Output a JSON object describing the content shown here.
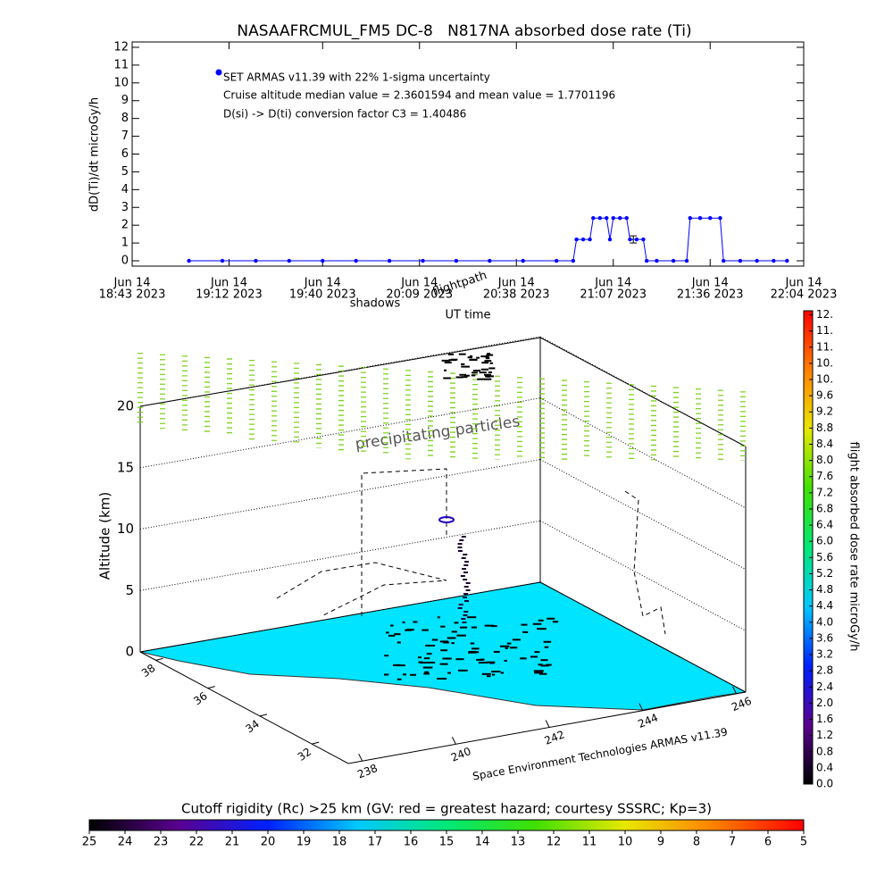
{
  "chart_data": [
    {
      "type": "line",
      "title": "NASAAFRCMUL_FM5 DC-8   N817NA absorbed dose rate (Ti)",
      "ylabel": "dD(Ti)/dt microGy/h",
      "xlabel": "UT time",
      "annotations": [
        "Cruise altitude median value = 2.3601594 and mean value = 1.7701196",
        "D(si) -> D(ti) conversion factor C3 = 1.40486"
      ],
      "labels": [
        "shadows",
        "flightpath"
      ],
      "x": [
        "2023-06-14T19:00",
        "2023-06-14T19:10",
        "2023-06-14T19:20",
        "2023-06-14T19:30",
        "2023-06-14T19:40",
        "2023-06-14T19:50",
        "2023-06-14T20:00",
        "2023-06-14T20:10",
        "2023-06-14T20:20",
        "2023-06-14T20:30",
        "2023-06-14T20:40",
        "2023-06-14T20:50",
        "2023-06-14T20:55",
        "2023-06-14T20:56",
        "2023-06-14T20:58",
        "2023-06-14T21:00",
        "2023-06-14T21:01",
        "2023-06-14T21:03",
        "2023-06-14T21:05",
        "2023-06-14T21:06",
        "2023-06-14T21:07",
        "2023-06-14T21:09",
        "2023-06-14T21:11",
        "2023-06-14T21:12",
        "2023-06-14T21:14",
        "2023-06-14T21:16",
        "2023-06-14T21:17",
        "2023-06-14T21:20",
        "2023-06-14T21:25",
        "2023-06-14T21:29",
        "2023-06-14T21:30",
        "2023-06-14T21:33",
        "2023-06-14T21:36",
        "2023-06-14T21:39",
        "2023-06-14T21:40",
        "2023-06-14T21:45",
        "2023-06-14T21:50",
        "2023-06-14T21:55",
        "2023-06-14T21:59"
      ],
      "series": [
        {
          "name": "SET ARMAS v11.39 with 22% 1-sigma uncertainty",
          "color": "#0000ff",
          "values": [
            0,
            0,
            0,
            0,
            0,
            0,
            0,
            0,
            0,
            0,
            0,
            0,
            0,
            1.2,
            1.2,
            1.2,
            2.4,
            2.4,
            2.4,
            1.2,
            2.4,
            2.4,
            2.4,
            1.2,
            1.2,
            1.2,
            0,
            0,
            0,
            0,
            2.4,
            2.4,
            2.4,
            2.4,
            0,
            0,
            0,
            0,
            0
          ]
        }
      ],
      "errorbars": [
        {
          "x": "2023-06-14T21:13",
          "value": 1.2,
          "error": 0.2
        }
      ],
      "xlim": [
        "2023-06-14T18:43",
        "2023-06-14T22:04"
      ],
      "xticks": [
        {
          "value": "2023-06-14T18:43",
          "label": [
            "Jun 14",
            "18:43 2023"
          ]
        },
        {
          "value": "2023-06-14T19:12",
          "label": [
            "Jun 14",
            "19:12 2023"
          ]
        },
        {
          "value": "2023-06-14T19:40",
          "label": [
            "Jun 14",
            "19:40 2023"
          ]
        },
        {
          "value": "2023-06-14T20:09",
          "label": [
            "Jun 14",
            "20:09 2023"
          ]
        },
        {
          "value": "2023-06-14T20:38",
          "label": [
            "Jun 14",
            "20:38 2023"
          ]
        },
        {
          "value": "2023-06-14T21:07",
          "label": [
            "Jun 14",
            "21:07 2023"
          ]
        },
        {
          "value": "2023-06-14T21:36",
          "label": [
            "Jun 14",
            "21:36 2023"
          ]
        },
        {
          "value": "2023-06-14T22:04",
          "label": [
            "Jun 14",
            "22:04 2023"
          ]
        }
      ],
      "ylim": [
        -0.3,
        12.3
      ],
      "yticks": [
        0,
        1,
        2,
        3,
        4,
        5,
        6,
        7,
        8,
        9,
        10,
        11,
        12
      ]
    },
    {
      "type": "surface3d",
      "zlabel": "Altitude (km)",
      "zlim": [
        0,
        20
      ],
      "zticks": [
        0,
        5,
        10,
        15,
        20
      ],
      "latlim": [
        38.6,
        30.6
      ],
      "latticks": [
        38,
        36,
        34,
        32
      ],
      "lonlim": [
        237.7,
        246.2
      ],
      "lonticks": [
        238,
        240,
        242,
        244,
        246
      ],
      "annotations": [
        "precipitating particles",
        "Space Environment Technologies ARMAS v11.39"
      ],
      "colorbar": {
        "label": "flight absorbed dose rate microGy/h",
        "lim": [
          0,
          11.7
        ],
        "colors": [
          "#000000",
          "#5a0090",
          "#0020ff",
          "#00c8ff",
          "#00e878",
          "#40e000",
          "#e8e800",
          "#ff8000",
          "#ff0000"
        ],
        "ticks": [
          {
            "value": 0,
            "label": "0.0"
          },
          0.4,
          0.8,
          1.2,
          1.6,
          {
            "value": 2,
            "label": "2.0"
          },
          2.4,
          2.8,
          3.2,
          3.6,
          {
            "value": 4,
            "label": "4.0"
          },
          4.4,
          4.8,
          5.2,
          5.6,
          {
            "value": 6,
            "label": "6.0"
          },
          6.4,
          6.8,
          7.2,
          7.6,
          {
            "value": 8,
            "label": "8.0"
          },
          8.4,
          8.8,
          9.2,
          9.6,
          {
            "value": 10,
            "label": "10."
          },
          {
            "value": 10.4,
            "label": "10."
          },
          {
            "value": 10.8,
            "label": "11."
          },
          {
            "value": 11.2,
            "label": "11."
          },
          {
            "value": 11.6,
            "label": "12."
          }
        ]
      }
    },
    {
      "type": "colorbar",
      "title": "Cutoff rigidity (Rc) >25 km (GV: red = greatest hazard; courtesy SSSRC; Kp=3)",
      "xlim": [
        25,
        5
      ],
      "xticks": [
        25,
        24,
        23,
        22,
        21,
        20,
        19,
        18,
        17,
        16,
        15,
        14,
        13,
        12,
        11,
        10,
        9,
        8,
        7,
        6,
        5
      ],
      "colors": [
        "#000000",
        "#5a0090",
        "#0020ff",
        "#00c8ff",
        "#00e878",
        "#40e000",
        "#e8e800",
        "#ff8000",
        "#ff0000"
      ]
    }
  ]
}
